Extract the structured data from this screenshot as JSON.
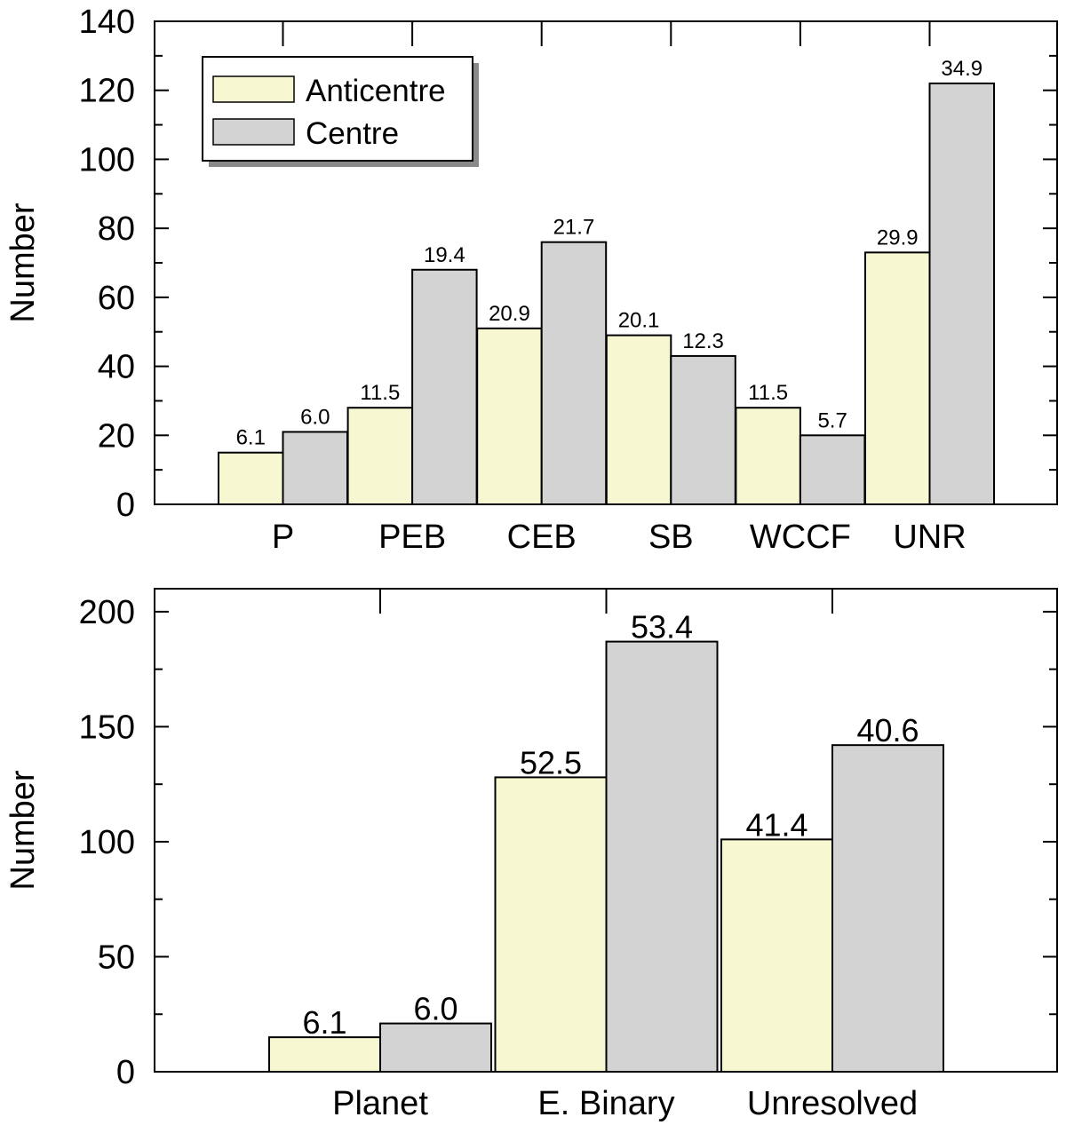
{
  "colors": {
    "anticentre": "#f7f7d2",
    "centre": "#d3d3d3",
    "stroke": "#000000",
    "background": "#ffffff"
  },
  "chart_data": [
    {
      "type": "bar",
      "title": "",
      "xlabel": "",
      "ylabel": "Number",
      "ylim": [
        0,
        140
      ],
      "yticks": [
        0,
        20,
        40,
        60,
        80,
        100,
        120,
        140
      ],
      "categories": [
        "P",
        "PEB",
        "CEB",
        "SB",
        "WCCF",
        "UNR"
      ],
      "legend": {
        "position": "top-left",
        "entries": [
          "Anticentre",
          "Centre"
        ]
      },
      "series": [
        {
          "name": "Anticentre",
          "values": [
            15,
            28,
            51,
            49,
            28,
            73
          ],
          "labels": [
            "6.1",
            "11.5",
            "20.9",
            "20.1",
            "11.5",
            "29.9"
          ]
        },
        {
          "name": "Centre",
          "values": [
            21,
            68,
            76,
            43,
            20,
            122
          ],
          "labels": [
            "6.0",
            "19.4",
            "21.7",
            "12.3",
            "5.7",
            "34.9"
          ]
        }
      ]
    },
    {
      "type": "bar",
      "title": "",
      "xlabel": "",
      "ylabel": "Number",
      "ylim": [
        0,
        210
      ],
      "yticks": [
        0,
        50,
        100,
        150,
        200
      ],
      "categories": [
        "Planet",
        "E. Binary",
        "Unresolved"
      ],
      "series": [
        {
          "name": "Anticentre",
          "values": [
            15,
            128,
            101
          ],
          "labels": [
            "6.1",
            "52.5",
            "41.4"
          ]
        },
        {
          "name": "Centre",
          "values": [
            21,
            187,
            142
          ],
          "labels": [
            "6.0",
            "53.4",
            "40.6"
          ]
        }
      ]
    }
  ]
}
